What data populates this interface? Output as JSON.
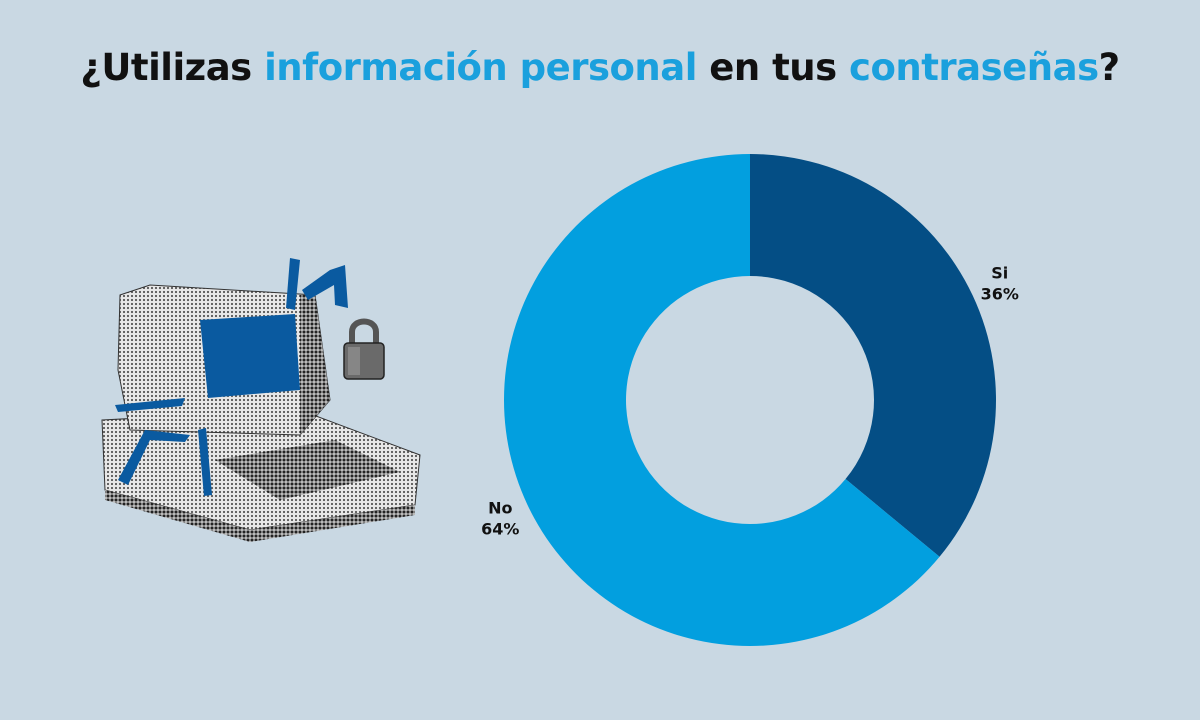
{
  "title": {
    "part1": "¿Utilizas ",
    "part2": "información personal",
    "part3": " en tus ",
    "part4": "contraseñas",
    "part5": "?",
    "highlight_color": "#1aa0dd"
  },
  "illustration": {
    "computer_icon": "retro-computer-icon",
    "lock_icon": "padlock-icon",
    "screen_color": "#0a5aa0"
  },
  "chart_data": {
    "type": "pie",
    "donut": true,
    "slices": [
      {
        "label": "Si",
        "value": 36,
        "display": "36%",
        "color": "#044e85"
      },
      {
        "label": "No",
        "value": 64,
        "display": "64%",
        "color": "#029fdf"
      }
    ]
  }
}
